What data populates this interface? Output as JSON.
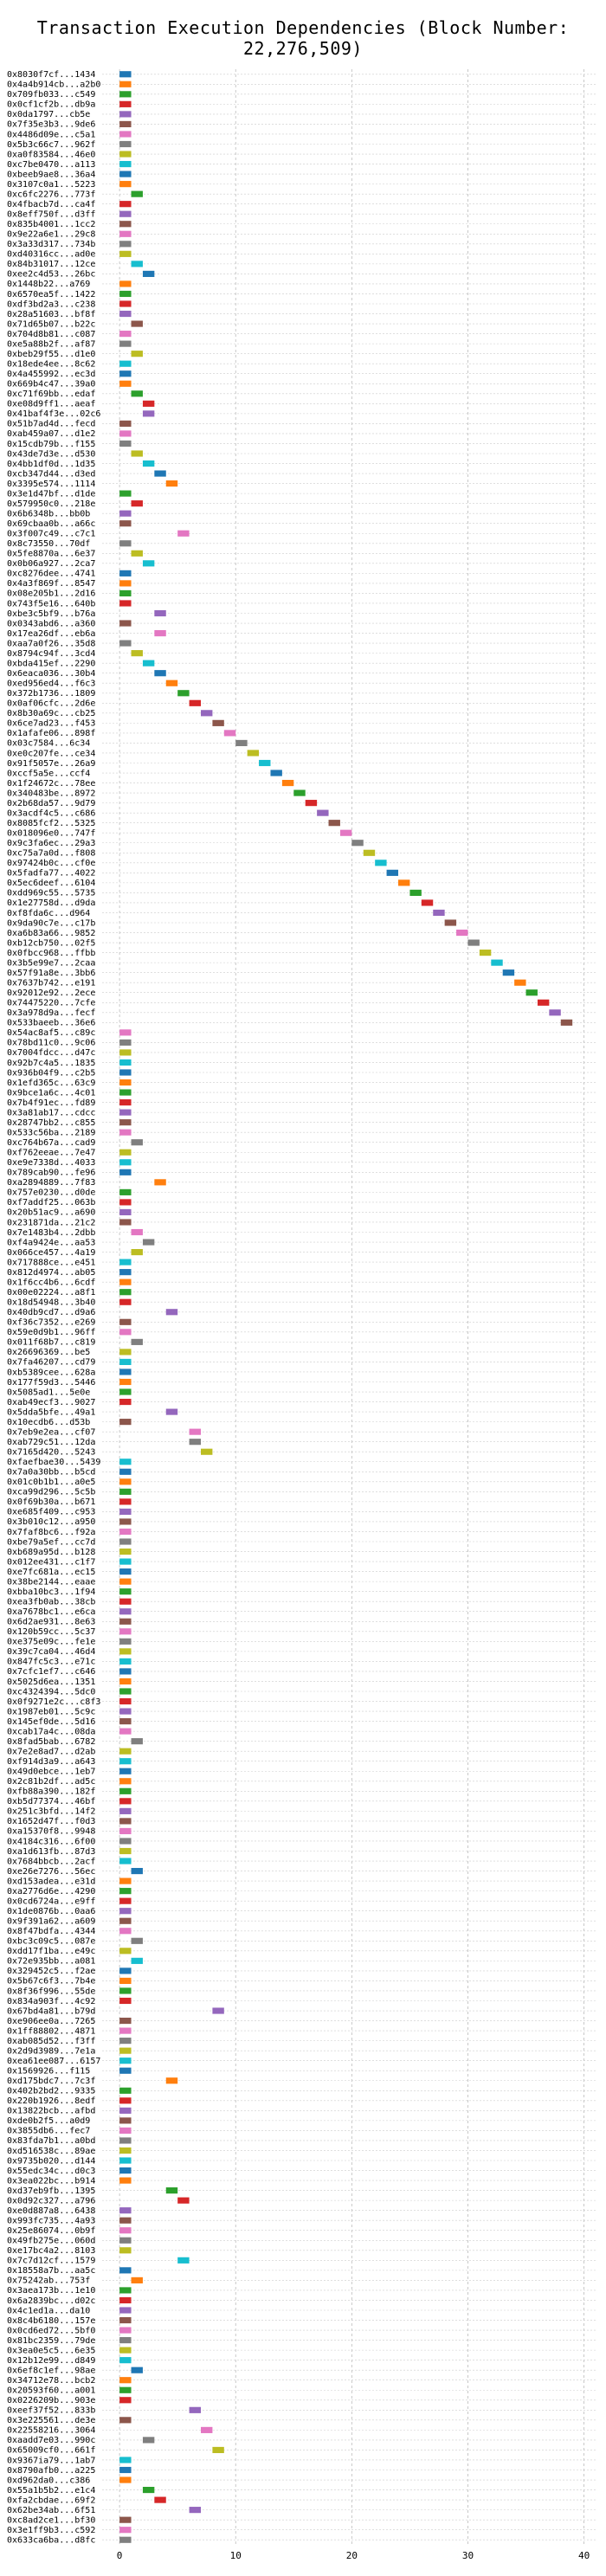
{
  "chart_data": {
    "type": "bar",
    "orientation": "horizontal",
    "title": "Transaction Execution Dependencies (Block Number: 22,276,509)",
    "xlabel": "",
    "ylabel": "",
    "xlim": [
      -1.5,
      41
    ],
    "x_ticks": [
      0,
      10,
      20,
      30,
      40
    ],
    "grid": true,
    "legend": "none",
    "palette": [
      "#1f77b4",
      "#ff7f0e",
      "#2ca02c",
      "#d62728",
      "#9467bd",
      "#8c564b",
      "#e377c2",
      "#7f7f7f",
      "#bcbd22",
      "#17becf"
    ],
    "transactions": [
      {
        "hash": "0x8030f7cf...1434",
        "start": 0
      },
      {
        "hash": "0x4a4b914cb...a2b0",
        "start": 0
      },
      {
        "hash": "0x709fb033...c549",
        "start": 0
      },
      {
        "hash": "0x0cf1cf2b...db9a",
        "start": 0
      },
      {
        "hash": "0x0da1797...cb5e",
        "start": 0
      },
      {
        "hash": "0x7f35e3b3...9de6",
        "start": 0
      },
      {
        "hash": "0x4486d09e...c5a1",
        "start": 0
      },
      {
        "hash": "0x5b3c66c7...962f",
        "start": 0
      },
      {
        "hash": "0xa0f83584...46e0",
        "start": 0
      },
      {
        "hash": "0xc7be0470...a113",
        "start": 0
      },
      {
        "hash": "0xbeeb9ae8...36a4",
        "start": 0
      },
      {
        "hash": "0x3107c0a1...5223",
        "start": 0
      },
      {
        "hash": "0xc6fc2276...773f",
        "start": 1
      },
      {
        "hash": "0x4fbacb7d...ca4f",
        "start": 0
      },
      {
        "hash": "0x8eff750f...d3ff",
        "start": 0
      },
      {
        "hash": "0x835b4001...1cc2",
        "start": 0
      },
      {
        "hash": "0x9e22a6e1...29c8",
        "start": 0
      },
      {
        "hash": "0x3a33d317...734b",
        "start": 0
      },
      {
        "hash": "0xd40316cc...ad0e",
        "start": 0
      },
      {
        "hash": "0x84b31017...12ce",
        "start": 1
      },
      {
        "hash": "0xee2c4d53...26bc",
        "start": 2
      },
      {
        "hash": "0x1448b22...a769",
        "start": 0
      },
      {
        "hash": "0x6570ea5f...1422",
        "start": 0
      },
      {
        "hash": "0xdf3bd2a3...c238",
        "start": 0
      },
      {
        "hash": "0x28a51603...bf8f",
        "start": 0
      },
      {
        "hash": "0x71d65b07...b22c",
        "start": 1
      },
      {
        "hash": "0x704d8b81...c087",
        "start": 0
      },
      {
        "hash": "0xe5a88b2f...af87",
        "start": 0
      },
      {
        "hash": "0xbeb29f55...d1e0",
        "start": 1
      },
      {
        "hash": "0x18ede4ee...8c62",
        "start": 0
      },
      {
        "hash": "0x4a455992...ec3d",
        "start": 0
      },
      {
        "hash": "0x669b4c47...39a0",
        "start": 0
      },
      {
        "hash": "0xc71f69bb...edaf",
        "start": 1
      },
      {
        "hash": "0xe08d9ff1...aeaf",
        "start": 2
      },
      {
        "hash": "0x41baf4f3e...02c6",
        "start": 2
      },
      {
        "hash": "0x51b7ad4d...fecd",
        "start": 0
      },
      {
        "hash": "0xab459a07...d1e2",
        "start": 0
      },
      {
        "hash": "0x15cdb79b...f155",
        "start": 0
      },
      {
        "hash": "0x43de7d3e...d530",
        "start": 1
      },
      {
        "hash": "0x4bb1df0d...1d35",
        "start": 2
      },
      {
        "hash": "0xcb347d44...d3ed",
        "start": 3
      },
      {
        "hash": "0x3395e574...1114",
        "start": 4
      },
      {
        "hash": "0x3e1d47bf...d1de",
        "start": 0
      },
      {
        "hash": "0x579950c0...218e",
        "start": 1
      },
      {
        "hash": "0x6b6348b...bb0b",
        "start": 0
      },
      {
        "hash": "0x69cbaa0b...a66c",
        "start": 0
      },
      {
        "hash": "0x3f007c49...c7c1",
        "start": 5
      },
      {
        "hash": "0x8c73550...70df",
        "start": 0
      },
      {
        "hash": "0x5fe8870a...6e37",
        "start": 1
      },
      {
        "hash": "0x0b06a927...2ca7",
        "start": 2
      },
      {
        "hash": "0xc8276dee...4741",
        "start": 0
      },
      {
        "hash": "0x4a3f869f...8547",
        "start": 0
      },
      {
        "hash": "0x08e205b1...2d16",
        "start": 0
      },
      {
        "hash": "0x743f5e16...640b",
        "start": 0
      },
      {
        "hash": "0xbe3c5bf9...b76a",
        "start": 3
      },
      {
        "hash": "0x0343abd6...a360",
        "start": 0
      },
      {
        "hash": "0x17ea26df...eb6a",
        "start": 3
      },
      {
        "hash": "0xaa7a0f26...35d8",
        "start": 0
      },
      {
        "hash": "0x8794c94f...3cd4",
        "start": 1
      },
      {
        "hash": "0xbda415ef...2290",
        "start": 2
      },
      {
        "hash": "0x6eaca036...30b4",
        "start": 3
      },
      {
        "hash": "0xed956ed4...f6c3",
        "start": 4
      },
      {
        "hash": "0x372b1736...1809",
        "start": 5
      },
      {
        "hash": "0x0af06cfc...2d6e",
        "start": 6
      },
      {
        "hash": "0x8b30a69c...cb25",
        "start": 7
      },
      {
        "hash": "0x6ce7ad23...f453",
        "start": 8
      },
      {
        "hash": "0x1afafe06...898f",
        "start": 9
      },
      {
        "hash": "0x03c7584...6c34",
        "start": 10
      },
      {
        "hash": "0xe0c207fe...ce34",
        "start": 11
      },
      {
        "hash": "0x91f5057e...26a9",
        "start": 12
      },
      {
        "hash": "0xccf5a5e...ccf4",
        "start": 13
      },
      {
        "hash": "0x1f24672c...78ee",
        "start": 14
      },
      {
        "hash": "0x340483be...8972",
        "start": 15
      },
      {
        "hash": "0x2b68da57...9d79",
        "start": 16
      },
      {
        "hash": "0x3acdf4c5...c686",
        "start": 17
      },
      {
        "hash": "0x8085fcf2...5325",
        "start": 18
      },
      {
        "hash": "0x018096e0...747f",
        "start": 19
      },
      {
        "hash": "0x9c3fa6ec...29a3",
        "start": 20
      },
      {
        "hash": "0xc75a7a0d...f808",
        "start": 21
      },
      {
        "hash": "0x97424b0c...cf0e",
        "start": 22
      },
      {
        "hash": "0x5fadfa77...4022",
        "start": 23
      },
      {
        "hash": "0x5ec6deef...6104",
        "start": 24
      },
      {
        "hash": "0xdd969c55...5735",
        "start": 25
      },
      {
        "hash": "0x1e27758d...d9da",
        "start": 26
      },
      {
        "hash": "0xf8fda6c...d964",
        "start": 27
      },
      {
        "hash": "0x9da90c7e...c17b",
        "start": 28
      },
      {
        "hash": "0xa6b83a66...9852",
        "start": 29
      },
      {
        "hash": "0xb12cb750...02f5",
        "start": 30
      },
      {
        "hash": "0x0fbcc968...ffbb",
        "start": 31
      },
      {
        "hash": "0x3b5e99e7...2caa",
        "start": 32
      },
      {
        "hash": "0x57f91a8e...3bb6",
        "start": 33
      },
      {
        "hash": "0x7637b742...e191",
        "start": 34
      },
      {
        "hash": "0x92012e92...2ece",
        "start": 35
      },
      {
        "hash": "0x74475220...7cfe",
        "start": 36
      },
      {
        "hash": "0x3a978d9a...fecf",
        "start": 37
      },
      {
        "hash": "0x533baeeb...36e6",
        "start": 38
      },
      {
        "hash": "0x54ac8af5...c89c",
        "start": 0
      },
      {
        "hash": "0x78bd11c0...9c06",
        "start": 0
      },
      {
        "hash": "0x7004fdcc...d47c",
        "start": 0
      },
      {
        "hash": "0x92b7c4a5...1835",
        "start": 0
      },
      {
        "hash": "0x936b04f9...c2b5",
        "start": 0
      },
      {
        "hash": "0x1efd365c...63c9",
        "start": 0
      },
      {
        "hash": "0x9bce1a6c...4c01",
        "start": 0
      },
      {
        "hash": "0x7b4f91ec...fd89",
        "start": 0
      },
      {
        "hash": "0x3a81ab17...cdcc",
        "start": 0
      },
      {
        "hash": "0x28747bb2...c855",
        "start": 0
      },
      {
        "hash": "0x533c56ba...2189",
        "start": 0
      },
      {
        "hash": "0xc764b67a...cad9",
        "start": 1
      },
      {
        "hash": "0xf762eeae...7e47",
        "start": 0
      },
      {
        "hash": "0xe9e7338d...4033",
        "start": 0
      },
      {
        "hash": "0x789cab90...fe96",
        "start": 0
      },
      {
        "hash": "0xa2894889...7f83",
        "start": 3
      },
      {
        "hash": "0x757e0230...d0de",
        "start": 0
      },
      {
        "hash": "0xf7addf25...063b",
        "start": 0
      },
      {
        "hash": "0x20b51ac9...a690",
        "start": 0
      },
      {
        "hash": "0x231871da...21c2",
        "start": 0
      },
      {
        "hash": "0x7e1483b4...2dbb",
        "start": 1
      },
      {
        "hash": "0xf4a9424e...aa53",
        "start": 2
      },
      {
        "hash": "0x066ce457...4a19",
        "start": 1
      },
      {
        "hash": "0x717888ce...e451",
        "start": 0
      },
      {
        "hash": "0x812d4974...ab05",
        "start": 0
      },
      {
        "hash": "0x1f6cc4b6...6cdf",
        "start": 0
      },
      {
        "hash": "0x00e02224...a8f1",
        "start": 0
      },
      {
        "hash": "0x18d54948...3b40",
        "start": 0
      },
      {
        "hash": "0x40db9cd7...d9a6",
        "start": 4
      },
      {
        "hash": "0xf36c7352...e269",
        "start": 0
      },
      {
        "hash": "0x59e0d9b1...96ff",
        "start": 0
      },
      {
        "hash": "0x011f68b7...c819",
        "start": 1
      },
      {
        "hash": "0x26696369...be5",
        "start": 0
      },
      {
        "hash": "0x7fa46207...cd79",
        "start": 0
      },
      {
        "hash": "0xb5389cee...628a",
        "start": 0
      },
      {
        "hash": "0x177f59d3...5446",
        "start": 0
      },
      {
        "hash": "0x5085ad1...5e0e",
        "start": 0
      },
      {
        "hash": "0xab49ecf3...9027",
        "start": 0
      },
      {
        "hash": "0x5dda5bfe...49a1",
        "start": 4
      },
      {
        "hash": "0x10ecdb6...d53b",
        "start": 0
      },
      {
        "hash": "0x7eb9e2ea...cf07",
        "start": 6
      },
      {
        "hash": "0xab729c51...12da",
        "start": 6
      },
      {
        "hash": "0x7165d420...5243",
        "start": 7
      },
      {
        "hash": "0xfaefbae30...5439",
        "start": 0
      },
      {
        "hash": "0x7a0a30bb...b5cd",
        "start": 0
      },
      {
        "hash": "0x01c0b1b1...a0e5",
        "start": 0
      },
      {
        "hash": "0xca99d296...5c5b",
        "start": 0
      },
      {
        "hash": "0x0f69b30a...b671",
        "start": 0
      },
      {
        "hash": "0xe685f409...c953",
        "start": 0
      },
      {
        "hash": "0x3b010c12...a950",
        "start": 0
      },
      {
        "hash": "0x7faf8bc6...f92a",
        "start": 0
      },
      {
        "hash": "0xbe79a5ef...cc7d",
        "start": 0
      },
      {
        "hash": "0xb689a95d...b128",
        "start": 0
      },
      {
        "hash": "0x012ee431...c1f7",
        "start": 0
      },
      {
        "hash": "0xe7fc681a...ec15",
        "start": 0
      },
      {
        "hash": "0x38be2144...eaae",
        "start": 0
      },
      {
        "hash": "0xbba10bc3...1f94",
        "start": 0
      },
      {
        "hash": "0xea3fb0ab...38cb",
        "start": 0
      },
      {
        "hash": "0xa7678bc1...e6ca",
        "start": 0
      },
      {
        "hash": "0x6d2ae931...8e63",
        "start": 0
      },
      {
        "hash": "0x120b59cc...5c37",
        "start": 0
      },
      {
        "hash": "0xe375e09c...fe1e",
        "start": 0
      },
      {
        "hash": "0x39c7ca04...46d4",
        "start": 0
      },
      {
        "hash": "0x847fc5c3...e71c",
        "start": 0
      },
      {
        "hash": "0x7cfc1ef7...c646",
        "start": 0
      },
      {
        "hash": "0x5025d6ea...1351",
        "start": 0
      },
      {
        "hash": "0xc4324394...5dc0",
        "start": 0
      },
      {
        "hash": "0x0f9271e2c...c8f3",
        "start": 0
      },
      {
        "hash": "0x1987eb01...5c9c",
        "start": 0
      },
      {
        "hash": "0x145ef0de...5d16",
        "start": 0
      },
      {
        "hash": "0xcab17a4c...08da",
        "start": 0
      },
      {
        "hash": "0x8fad5bab...6782",
        "start": 1
      },
      {
        "hash": "0x7e2e8ad7...d2ab",
        "start": 0
      },
      {
        "hash": "0xf914d3a9...a643",
        "start": 0
      },
      {
        "hash": "0x49d0ebce...1eb7",
        "start": 0
      },
      {
        "hash": "0x2c81b2df...ad5c",
        "start": 0
      },
      {
        "hash": "0xfb88a390...182f",
        "start": 0
      },
      {
        "hash": "0xb5d77374...46bf",
        "start": 0
      },
      {
        "hash": "0x251c3bfd...14f2",
        "start": 0
      },
      {
        "hash": "0x1652d47f...f0d3",
        "start": 0
      },
      {
        "hash": "0xa15370f8...9948",
        "start": 0
      },
      {
        "hash": "0x4184c316...6f00",
        "start": 0
      },
      {
        "hash": "0xa1d613fb...87d3",
        "start": 0
      },
      {
        "hash": "0x7684bbcb...2acf",
        "start": 0
      },
      {
        "hash": "0xe26e7276...56ec",
        "start": 1
      },
      {
        "hash": "0xd153adea...e31d",
        "start": 0
      },
      {
        "hash": "0xa2776d6e...4290",
        "start": 0
      },
      {
        "hash": "0x0cd6724a...e9ff",
        "start": 0
      },
      {
        "hash": "0x1de0876b...0aa6",
        "start": 0
      },
      {
        "hash": "0x9f391a62...a609",
        "start": 0
      },
      {
        "hash": "0x8f47bdfa...4344",
        "start": 0
      },
      {
        "hash": "0xbc3c09c5...087e",
        "start": 1
      },
      {
        "hash": "0xdd17f1ba...e49c",
        "start": 0
      },
      {
        "hash": "0x72e935bb...a081",
        "start": 1
      },
      {
        "hash": "0x329452c5...f2ae",
        "start": 0
      },
      {
        "hash": "0x5b67c6f3...7b4e",
        "start": 0
      },
      {
        "hash": "0x8f36f996...55de",
        "start": 0
      },
      {
        "hash": "0x834a903f...4c92",
        "start": 0
      },
      {
        "hash": "0x67bd4a81...b79d",
        "start": 8
      },
      {
        "hash": "0xe906ee0a...7265",
        "start": 0
      },
      {
        "hash": "0x1ff88802...4871",
        "start": 0
      },
      {
        "hash": "0xab085d52...f3ff",
        "start": 0
      },
      {
        "hash": "0x2d9d3989...7e1a",
        "start": 0
      },
      {
        "hash": "0xea61ee087...6157",
        "start": 0
      },
      {
        "hash": "0x1569926...f115",
        "start": 0
      },
      {
        "hash": "0xd175bdc7...7c3f",
        "start": 4
      },
      {
        "hash": "0x402b2bd2...9335",
        "start": 0
      },
      {
        "hash": "0x220b1926...8edf",
        "start": 0
      },
      {
        "hash": "0x13822bcb...afbd",
        "start": 0
      },
      {
        "hash": "0xde0b2f5...a0d9",
        "start": 0
      },
      {
        "hash": "0x3855db6...fec7",
        "start": 0
      },
      {
        "hash": "0x83fda7b1...a0bd",
        "start": 0
      },
      {
        "hash": "0xd516538c...89ae",
        "start": 0
      },
      {
        "hash": "0x9735b020...d144",
        "start": 0
      },
      {
        "hash": "0x55edc34c...d0c3",
        "start": 0
      },
      {
        "hash": "0x3ea022bc...b914",
        "start": 0
      },
      {
        "hash": "0xd37eb9fb...1395",
        "start": 4
      },
      {
        "hash": "0x0d92c327...a796",
        "start": 5
      },
      {
        "hash": "0xe0d887a8...6438",
        "start": 0
      },
      {
        "hash": "0x993fc735...4a93",
        "start": 0
      },
      {
        "hash": "0x25e86074...0b9f",
        "start": 0
      },
      {
        "hash": "0x49fb275e...060d",
        "start": 0
      },
      {
        "hash": "0xe17bc4a2...8103",
        "start": 0
      },
      {
        "hash": "0x7c7d12cf...1579",
        "start": 5
      },
      {
        "hash": "0x18558a7b...aa5c",
        "start": 0
      },
      {
        "hash": "0x75242ab...753f",
        "start": 1
      },
      {
        "hash": "0x3aea173b...1e10",
        "start": 0
      },
      {
        "hash": "0x6a2839bc...d02c",
        "start": 0
      },
      {
        "hash": "0x4c1ed1a...da10",
        "start": 0
      },
      {
        "hash": "0x8c4b6180...157e",
        "start": 0
      },
      {
        "hash": "0x0cd6ed72...5bf0",
        "start": 0
      },
      {
        "hash": "0x81bc2359...79de",
        "start": 0
      },
      {
        "hash": "0x3ea0e5c5...6e35",
        "start": 0
      },
      {
        "hash": "0x12b12e99...d849",
        "start": 0
      },
      {
        "hash": "0x6ef8c1ef...98ae",
        "start": 1
      },
      {
        "hash": "0x34712e78...bcb2",
        "start": 0
      },
      {
        "hash": "0x20593f60...a001",
        "start": 0
      },
      {
        "hash": "0x0226209b...903e",
        "start": 0
      },
      {
        "hash": "0xeef37f52...833b",
        "start": 6
      },
      {
        "hash": "0x3e225561...de3e",
        "start": 0
      },
      {
        "hash": "0x22558216...3064",
        "start": 7
      },
      {
        "hash": "0xaadd7e03...990c",
        "start": 2
      },
      {
        "hash": "0x65009cf0...661f",
        "start": 8
      },
      {
        "hash": "0x9367ia79...1ab7",
        "start": 0
      },
      {
        "hash": "0x8790afb0...a225",
        "start": 0
      },
      {
        "hash": "0xd962da0...c386",
        "start": 0
      },
      {
        "hash": "0x55a1b5b2...e1c4",
        "start": 2
      },
      {
        "hash": "0xfa2cbdae...69f2",
        "start": 3
      },
      {
        "hash": "0x62be34ab...6f51",
        "start": 6
      },
      {
        "hash": "0xc8ad2ce1...bf30",
        "start": 0
      },
      {
        "hash": "0x3e1ff9b3...c592",
        "start": 0
      },
      {
        "hash": "0x633ca6ba...d8fc",
        "start": 0
      }
    ]
  }
}
